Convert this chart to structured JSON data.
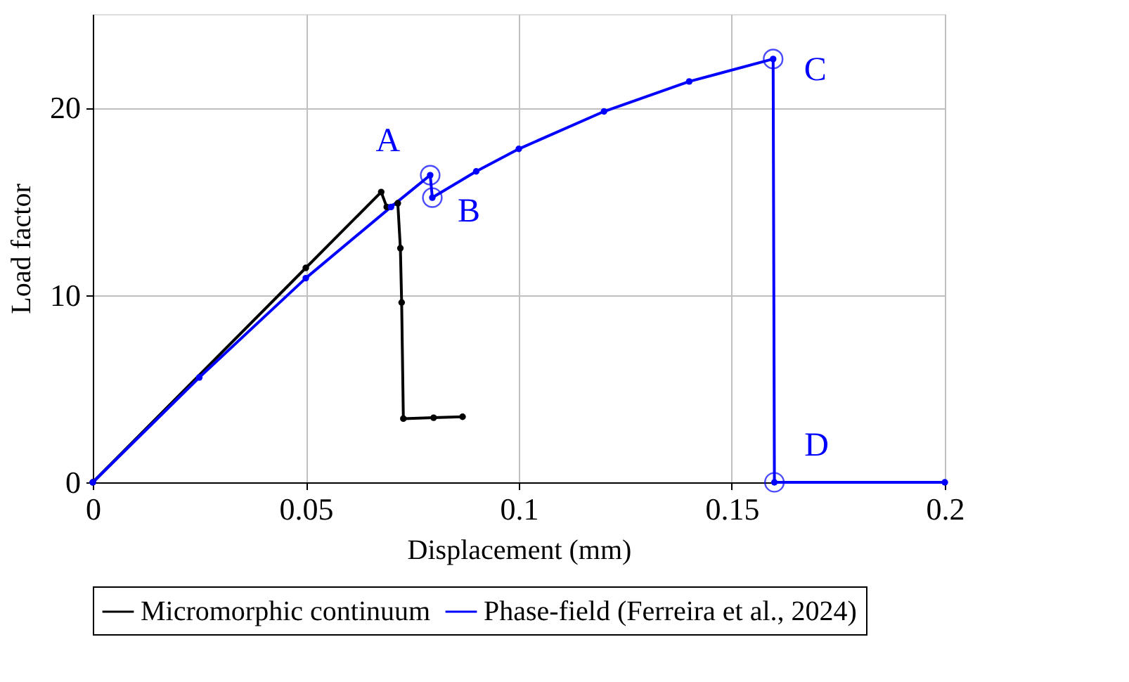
{
  "chart_data": {
    "type": "line",
    "xlabel": "Displacement (mm)",
    "ylabel": "Load factor",
    "xlim": [
      0,
      0.2
    ],
    "xticks": [
      0,
      0.05,
      0.1,
      0.15,
      0.2
    ],
    "ylim": [
      0,
      25
    ],
    "yticks": [
      0,
      10,
      20
    ],
    "grid": true,
    "legend": "bottom",
    "marker": "circle",
    "line_style": "solid",
    "series": [
      {
        "name": "Micromorphic continuum",
        "color": "#000000",
        "x": [
          0,
          0.05,
          0.0677,
          0.069,
          0.0716,
          0.0722,
          0.0725,
          0.0729,
          0.08,
          0.0868
        ],
        "values": [
          0,
          11.45,
          15.5,
          14.7,
          14.9,
          12.5,
          9.6,
          3.4,
          3.45,
          3.5
        ]
      },
      {
        "name": "Phase-field (Ferreira et al., 2024)",
        "color": "#0000ff",
        "x": [
          0,
          0.025,
          0.05,
          0.07,
          0.0792,
          0.0797,
          0.09,
          0.1,
          0.12,
          0.14,
          0.1597,
          0.16,
          0.2
        ],
        "values": [
          0,
          5.6,
          10.9,
          14.7,
          16.4,
          15.2,
          16.6,
          17.8,
          19.8,
          21.4,
          22.6,
          0,
          0
        ]
      }
    ],
    "annotations": [
      {
        "text": "A",
        "x": 0.0792,
        "y": 16.4
      },
      {
        "text": "B",
        "x": 0.0797,
        "y": 15.2
      },
      {
        "text": "C",
        "x": 0.1597,
        "y": 22.6
      },
      {
        "text": "D",
        "x": 0.16,
        "y": 0
      }
    ]
  }
}
